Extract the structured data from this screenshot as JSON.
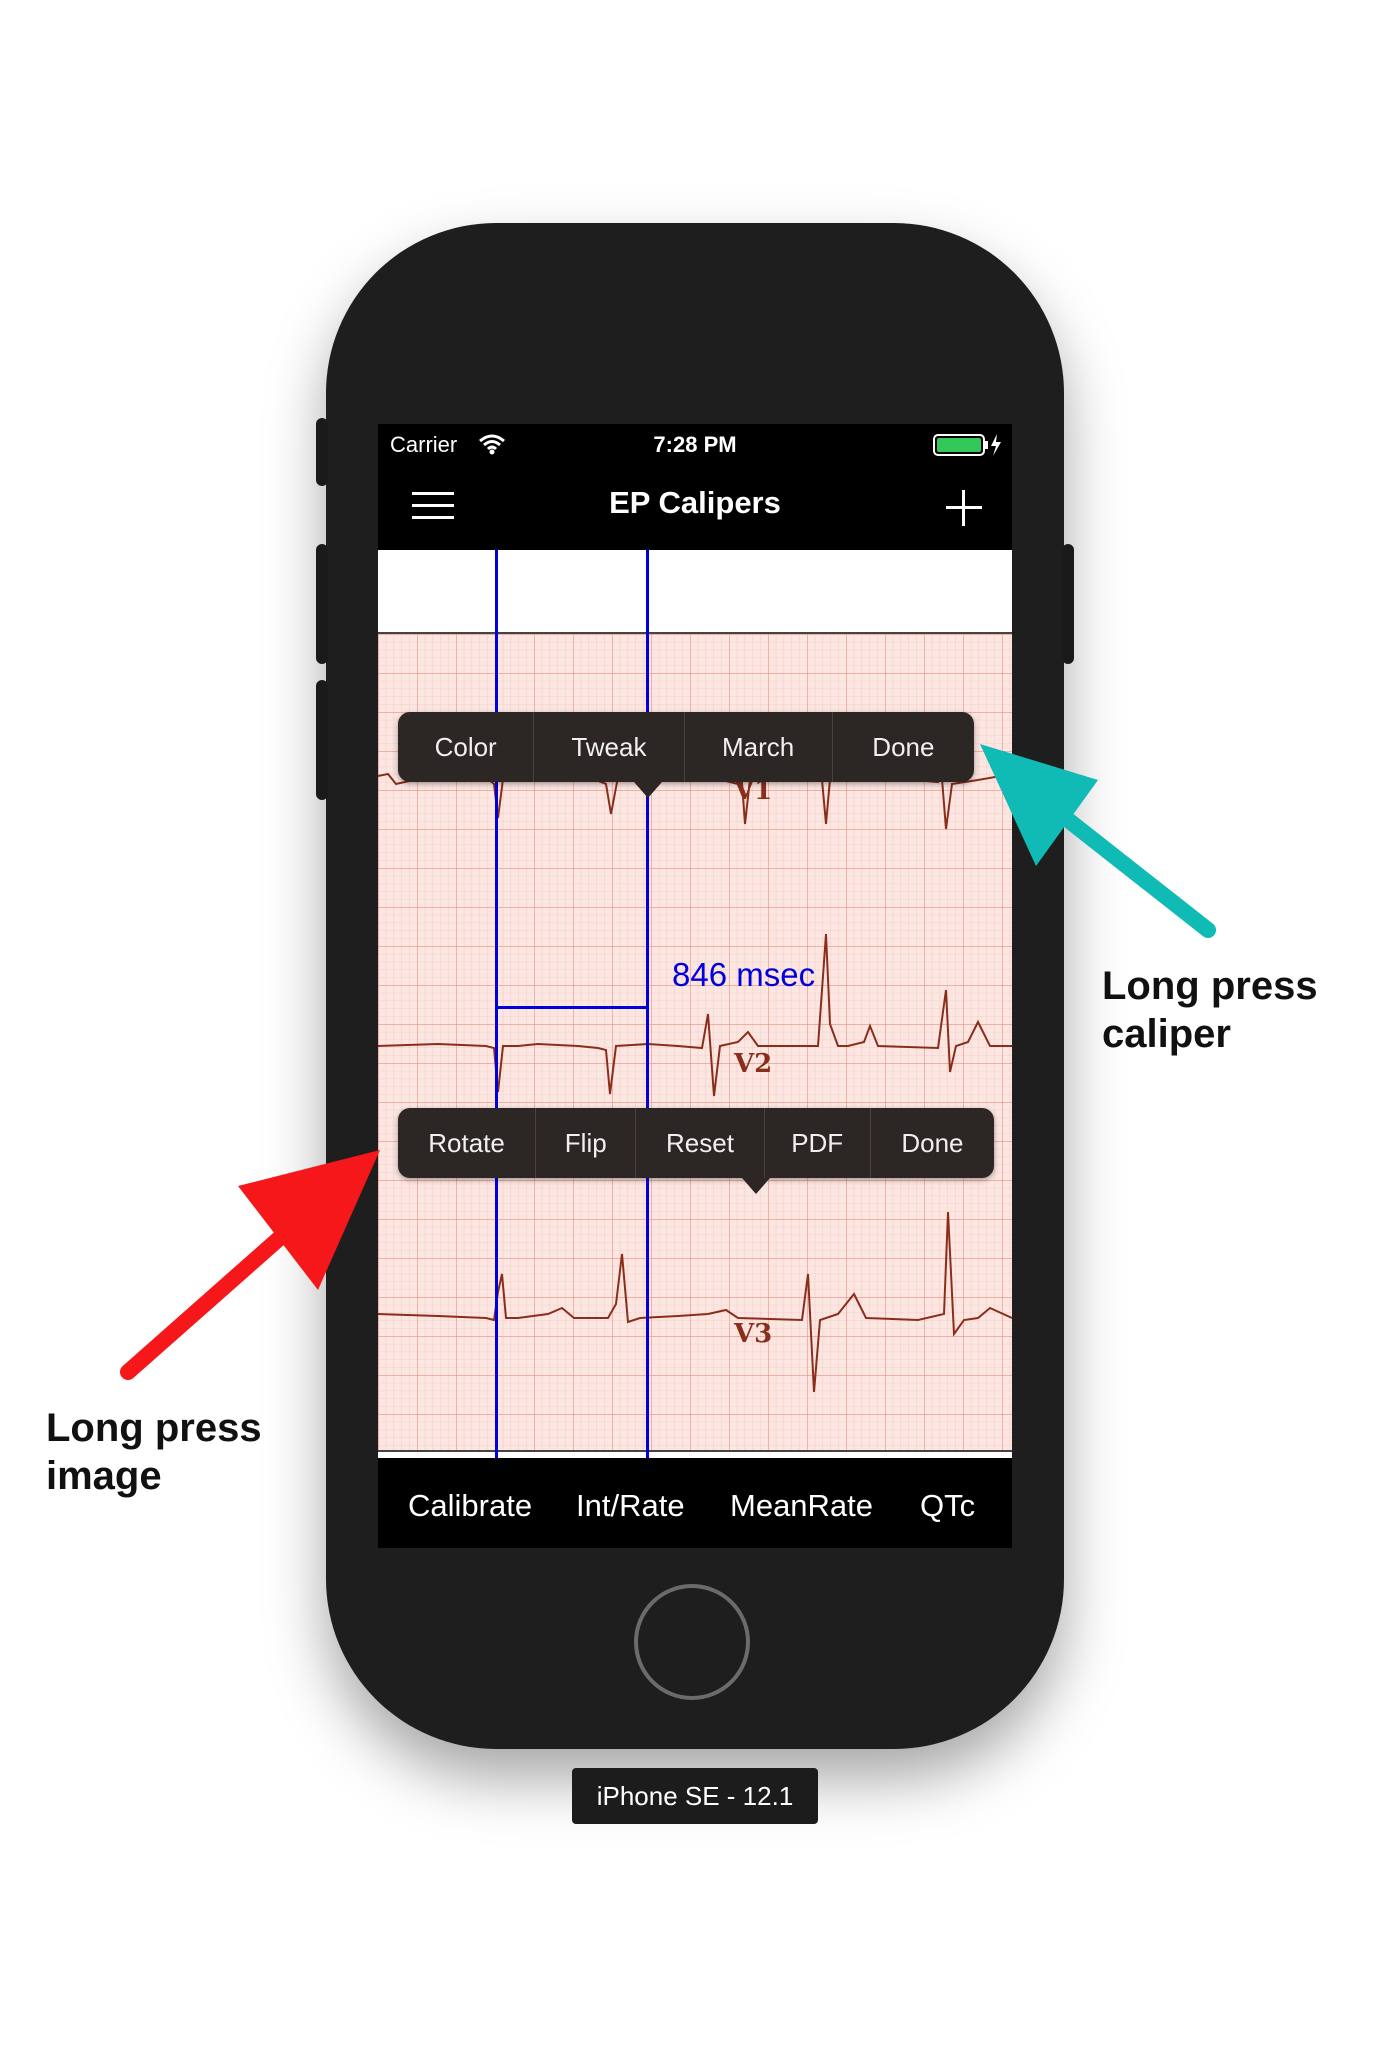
{
  "status_bar": {
    "carrier": "Carrier",
    "time": "7:28 PM"
  },
  "nav": {
    "title": "EP Calipers",
    "menu_icon": "hamburger-menu-icon",
    "add_icon": "plus-icon"
  },
  "caliper_menu": {
    "items": [
      "Color",
      "Tweak",
      "March",
      "Done"
    ]
  },
  "image_menu": {
    "items": [
      "Rotate",
      "Flip",
      "Reset",
      "PDF",
      "Done"
    ]
  },
  "measurement": {
    "label": "846 msec",
    "color": "#0000dd"
  },
  "leads": [
    "V1",
    "V2",
    "V3"
  ],
  "toolbar": {
    "items": [
      "Calibrate",
      "Int/Rate",
      "MeanRate",
      "QTc"
    ]
  },
  "device_label": "iPhone SE - 12.1",
  "annotations": {
    "caliper": {
      "line1": "Long press",
      "line2": "caliper",
      "arrow_color": "#10bbb6"
    },
    "image": {
      "line1": "Long press",
      "line2": "image",
      "arrow_color": "#f5171a"
    }
  },
  "colors": {
    "caliper": "#0000dd",
    "ecg_paper": "#fbe6e2",
    "ecg_trace": "#8a2e1c"
  }
}
